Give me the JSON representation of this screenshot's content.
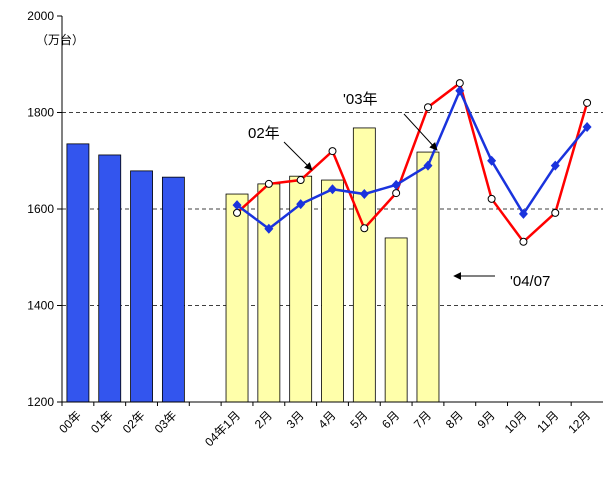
{
  "chart_data": {
    "type": "bar",
    "unit_label": "（万台）",
    "categories": [
      "00年",
      "01年",
      "02年",
      "03年",
      null,
      "04年1月",
      "2月",
      "3月",
      "4月",
      "5月",
      "6月",
      "7月",
      "8月",
      "9月",
      "10月",
      "11月",
      "12月"
    ],
    "series": [
      {
        "kind": "bar",
        "color": "#3355ee",
        "values": [
          1735,
          1712,
          1679,
          1666,
          null,
          null,
          null,
          null,
          null,
          null,
          null,
          null,
          null,
          null,
          null,
          null,
          null
        ]
      },
      {
        "kind": "bar",
        "color": "#ffffaa",
        "values": [
          null,
          null,
          null,
          null,
          null,
          1631,
          1652,
          1668,
          1660,
          1768,
          1540,
          1718,
          null,
          null,
          null,
          null,
          null
        ]
      },
      {
        "kind": "line",
        "color": "#ff0000",
        "marker": "circle",
        "values": [
          null,
          null,
          null,
          null,
          null,
          1592,
          1652,
          1660,
          1720,
          1560,
          1633,
          1811,
          1861,
          1621,
          1532,
          1592,
          1820
        ]
      },
      {
        "kind": "line",
        "color": "#1a33dd",
        "marker": "diamond",
        "values": [
          null,
          null,
          null,
          null,
          null,
          1608,
          1559,
          1610,
          1641,
          1631,
          1650,
          1690,
          1845,
          1700,
          1590,
          1690,
          1770
        ]
      }
    ],
    "annotations": [
      "02年",
      "'03年",
      "'04/07"
    ],
    "ylim": [
      1200,
      2000
    ],
    "yticks": [
      1200,
      1400,
      1600,
      1800,
      2000
    ],
    "grid": true
  }
}
